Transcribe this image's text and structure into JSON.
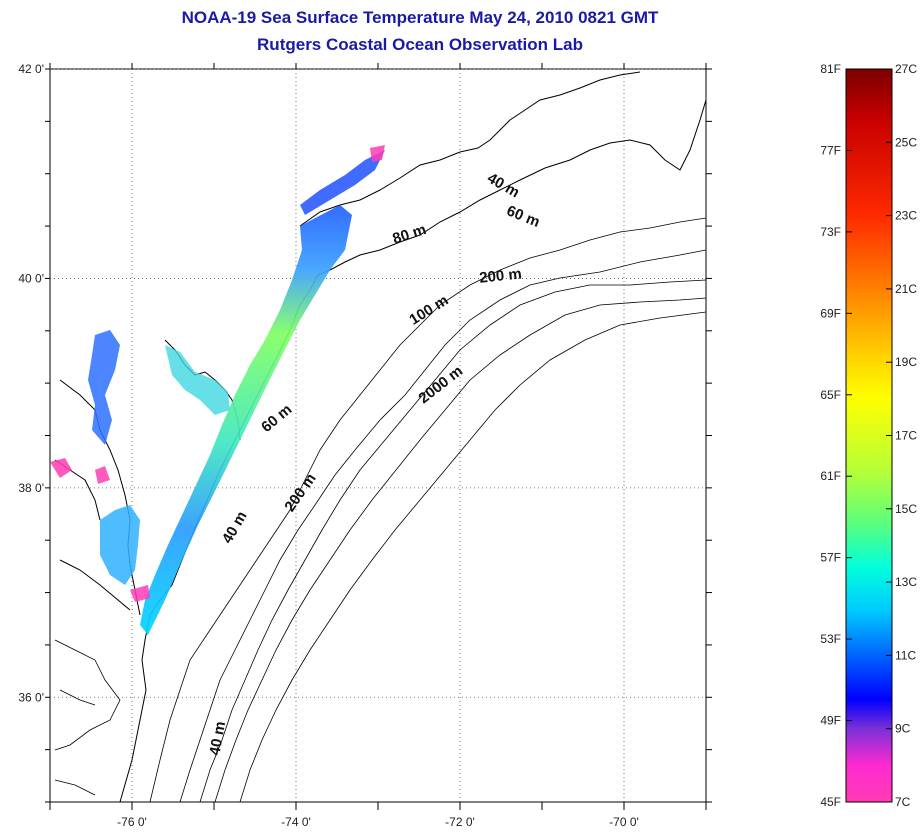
{
  "header": {
    "title_line1": "NOAA-19 Sea Surface Temperature May 24, 2010 0821 GMT",
    "title_line2": "Rutgers Coastal Ocean Observation Lab"
  },
  "map": {
    "lon_range": [
      -77.0,
      -69.0
    ],
    "lat_range": [
      35.0,
      42.0
    ],
    "lon_ticks": [
      {
        "value": -76,
        "label": "-76 0'"
      },
      {
        "value": -74,
        "label": "-74 0'"
      },
      {
        "value": -72,
        "label": "-72 0'"
      },
      {
        "value": -70,
        "label": "-70 0'"
      }
    ],
    "lat_ticks": [
      {
        "value": 42,
        "label": "42 0'"
      },
      {
        "value": 40,
        "label": "40 0'"
      },
      {
        "value": 38,
        "label": "38 0'"
      },
      {
        "value": 36,
        "label": "36 0'"
      }
    ],
    "grid": "dotted",
    "contour_labels": [
      {
        "text": "40 m",
        "lon": -71.5,
        "lat": 40.85,
        "angle": 30
      },
      {
        "text": "60 m",
        "lon": -71.25,
        "lat": 40.55,
        "angle": 22
      },
      {
        "text": "80 m",
        "lon": -72.6,
        "lat": 40.38,
        "angle": -18
      },
      {
        "text": "200 m",
        "lon": -71.5,
        "lat": 39.98,
        "angle": -6
      },
      {
        "text": "100 m",
        "lon": -72.35,
        "lat": 39.66,
        "angle": -32
      },
      {
        "text": "2000 m",
        "lon": -72.2,
        "lat": 38.95,
        "angle": -38
      },
      {
        "text": "60 m",
        "lon": -74.2,
        "lat": 38.63,
        "angle": -40
      },
      {
        "text": "200 m",
        "lon": -73.9,
        "lat": 37.93,
        "angle": -55
      },
      {
        "text": "40 m",
        "lon": -74.7,
        "lat": 37.6,
        "angle": -60
      },
      {
        "text": "40 m",
        "lon": -74.9,
        "lat": 35.6,
        "angle": -80
      }
    ]
  },
  "colorbar": {
    "range_f": [
      45,
      81
    ],
    "range_c": [
      7,
      27
    ],
    "f_ticks": [
      {
        "value": 81,
        "label": "81F"
      },
      {
        "value": 77,
        "label": "77F"
      },
      {
        "value": 73,
        "label": "73F"
      },
      {
        "value": 69,
        "label": "69F"
      },
      {
        "value": 65,
        "label": "65F"
      },
      {
        "value": 61,
        "label": "61F"
      },
      {
        "value": 57,
        "label": "57F"
      },
      {
        "value": 53,
        "label": "53F"
      },
      {
        "value": 49,
        "label": "49F"
      },
      {
        "value": 45,
        "label": "45F"
      }
    ],
    "c_ticks": [
      {
        "value": 27,
        "label": "27C"
      },
      {
        "value": 25,
        "label": "25C"
      },
      {
        "value": 23,
        "label": "23C"
      },
      {
        "value": 21,
        "label": "21C"
      },
      {
        "value": 19,
        "label": "19C"
      },
      {
        "value": 17,
        "label": "17C"
      },
      {
        "value": 15,
        "label": "15C"
      },
      {
        "value": 13,
        "label": "13C"
      },
      {
        "value": 11,
        "label": "11C"
      },
      {
        "value": 9,
        "label": "9C"
      },
      {
        "value": 7,
        "label": "7C"
      }
    ],
    "colors": [
      "#7b0000",
      "#c80000",
      "#ff2a00",
      "#ff8000",
      "#ffd800",
      "#ffff00",
      "#b4ff38",
      "#5aff7c",
      "#00ffdc",
      "#00c8ff",
      "#0064ff",
      "#0000ff",
      "#7a30d8",
      "#ff2ad0",
      "#ff3cb4"
    ]
  }
}
